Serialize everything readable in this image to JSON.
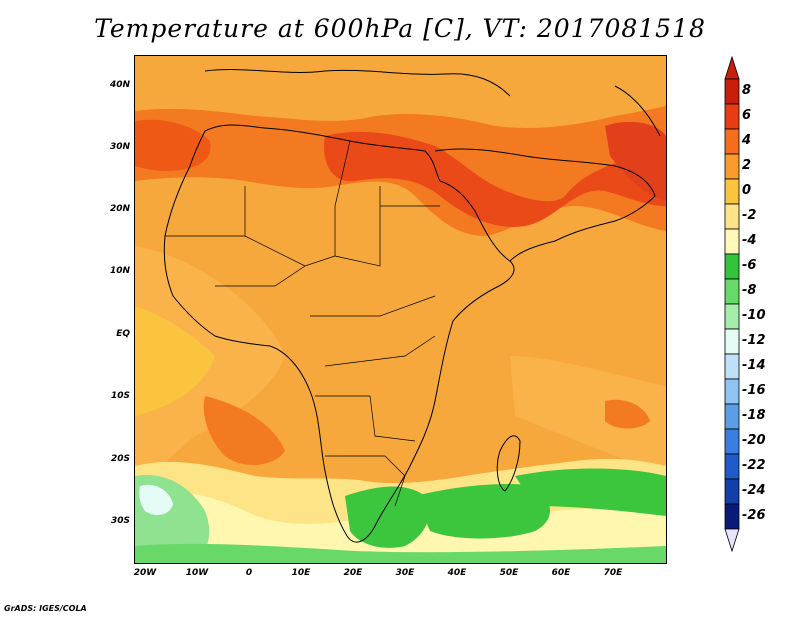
{
  "title": "Temperature at 600hPa [C], VT: 2017081518",
  "footer": "GrADS: IGES/COLA",
  "lat_labels": [
    "40N",
    "30N",
    "20N",
    "10N",
    "EQ",
    "10S",
    "20S",
    "30S"
  ],
  "lon_labels": [
    "20W",
    "10W",
    "0",
    "10E",
    "20E",
    "30E",
    "40E",
    "50E",
    "60E",
    "70E"
  ],
  "colorbar": {
    "labels": [
      "8",
      "6",
      "4",
      "2",
      "0",
      "-2",
      "-4",
      "-6",
      "-8",
      "-10",
      "-12",
      "-14",
      "-16",
      "-18",
      "-20",
      "-22",
      "-24",
      "-26"
    ],
    "colors": [
      "#c81e0a",
      "#ea3c14",
      "#f56e1e",
      "#f99b2a",
      "#fbc43e",
      "#fde587",
      "#fff8b8",
      "#34c33b",
      "#68d968",
      "#a6ecaa",
      "#e4fbf6",
      "#bfe0f7",
      "#8fc4f2",
      "#5a9ee8",
      "#3a7fdf",
      "#1f5cc9",
      "#1340a8",
      "#0a1a78"
    ]
  },
  "fill_colors": {
    "warm_base": "#f7a83c",
    "hot": "#ee5a16",
    "hotter": "#e2401a",
    "mild": "#fbc43e",
    "cool": "#fde587",
    "pale": "#fff6b0",
    "green": "#3cc63e",
    "light_green": "#8fe28f",
    "very_light": "#e4fbf6"
  }
}
